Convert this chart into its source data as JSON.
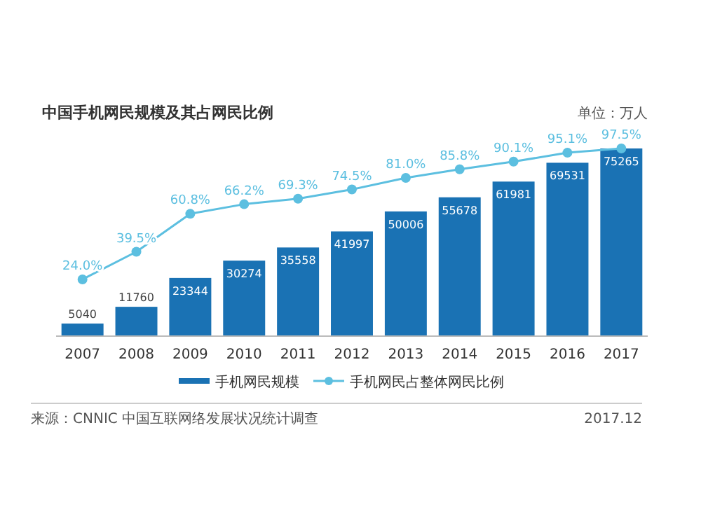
{
  "chart_data": {
    "type": "bar",
    "title": "中国手机网民规模及其占网民比例",
    "annotations": [
      "单位：万人",
      "来源：CNNIC 中国互联网络发展状况统计调查",
      "2017.12"
    ],
    "categories": [
      "2007",
      "2008",
      "2009",
      "2010",
      "2011",
      "2012",
      "2013",
      "2014",
      "2015",
      "2016",
      "2017"
    ],
    "series": [
      {
        "name": "手机网民规模",
        "color": "#1a72b4",
        "values": [
          5040,
          11760,
          23344,
          30274,
          35558,
          41997,
          50006,
          55678,
          61981,
          69531,
          75265
        ]
      },
      {
        "name": "手机网民占整体网民比例",
        "type": "line",
        "axis": "y2",
        "color": "#5cbfe0",
        "values": [
          24.0,
          39.5,
          60.8,
          66.2,
          69.3,
          74.5,
          81.0,
          85.8,
          90.1,
          95.1,
          97.5
        ],
        "value_labels": [
          "24.0%",
          "39.5%",
          "60.8%",
          "66.2%",
          "69.3%",
          "74.5%",
          "81.0%",
          "85.8%",
          "90.1%",
          "95.1%",
          "97.5%"
        ]
      }
    ],
    "data_labels": true,
    "legend": "bottom",
    "marker": "circle",
    "grid": false
  }
}
